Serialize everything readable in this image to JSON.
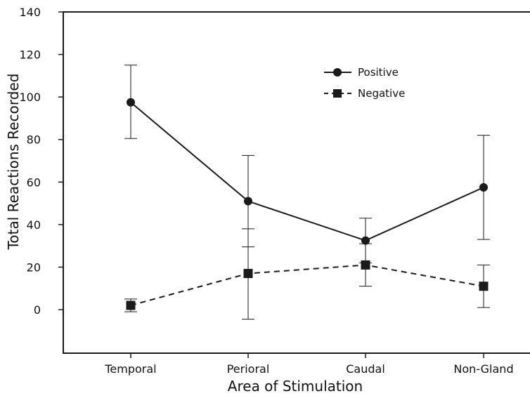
{
  "chart_data": {
    "type": "line",
    "xlabel": "Area of Stimulation",
    "ylabel": "Total Reactions Recorded",
    "categories": [
      "Temporal",
      "Perioral",
      "Caudal",
      "Non-Gland"
    ],
    "ylim": [
      -20,
      140
    ],
    "yticks": [
      0,
      20,
      40,
      60,
      80,
      100,
      120,
      140
    ],
    "ytick_labels": [
      "0",
      "20",
      "40",
      "60",
      "80",
      "100",
      "120",
      "140"
    ],
    "series": [
      {
        "name": "Positive",
        "marker": "circle",
        "linestyle": "solid",
        "values": [
          97.5,
          51,
          32.5,
          57.5
        ],
        "err_low": [
          80.5,
          29.5,
          22,
          33
        ],
        "err_high": [
          115,
          72.5,
          43,
          82
        ]
      },
      {
        "name": "Negative",
        "marker": "square",
        "linestyle": "dashed",
        "values": [
          2,
          17,
          21,
          11
        ],
        "err_low": [
          -1,
          -4.5,
          11,
          1
        ],
        "err_high": [
          5,
          38,
          31,
          21
        ]
      }
    ],
    "legend_position": "top-right",
    "grid": false,
    "colors": {
      "line": "#1a1a1a",
      "marker": "#1a1a1a",
      "background": "#ffffff"
    }
  }
}
